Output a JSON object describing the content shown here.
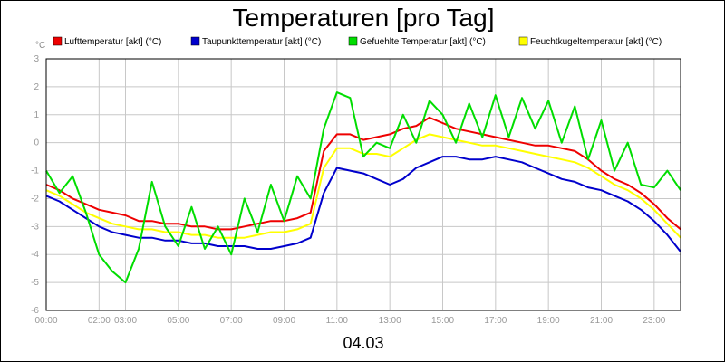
{
  "chart_data": {
    "type": "line",
    "title": "Temperaturen [pro Tag]",
    "unit_label": "°C",
    "date_label": "04.03",
    "ylim": [
      -6,
      3
    ],
    "yticks": [
      "3",
      "2",
      "1",
      "0",
      "-1",
      "-2",
      "-3",
      "-4",
      "-5",
      "-6"
    ],
    "xticks": [
      "00:00",
      "02:00",
      "03:00",
      "05:00",
      "07:00",
      "09:00",
      "11:00",
      "13:00",
      "15:00",
      "17:00",
      "19:00",
      "21:00",
      "23:00"
    ],
    "grid": true,
    "legend_position": "top",
    "series": [
      {
        "name": "Lufttemperatur [akt] (°C)",
        "color": "#ee0000",
        "x": [
          0,
          0.5,
          1,
          1.5,
          2,
          2.5,
          3,
          3.5,
          4,
          4.5,
          5,
          5.5,
          6,
          6.5,
          7,
          7.5,
          8,
          8.5,
          9,
          9.5,
          10,
          10.5,
          11,
          11.5,
          12,
          12.5,
          13,
          13.5,
          14,
          14.5,
          15,
          15.5,
          16,
          16.5,
          17,
          17.5,
          18,
          18.5,
          19,
          19.5,
          20,
          20.5,
          21,
          21.5,
          22,
          22.5,
          23,
          23.5,
          24
        ],
        "y": [
          -1.5,
          -1.7,
          -2.0,
          -2.2,
          -2.4,
          -2.5,
          -2.6,
          -2.8,
          -2.8,
          -2.9,
          -2.9,
          -3.0,
          -3.0,
          -3.1,
          -3.1,
          -3.0,
          -2.9,
          -2.8,
          -2.8,
          -2.7,
          -2.5,
          -0.3,
          0.3,
          0.3,
          0.1,
          0.2,
          0.3,
          0.5,
          0.6,
          0.9,
          0.7,
          0.5,
          0.4,
          0.3,
          0.2,
          0.1,
          0.0,
          -0.1,
          -0.1,
          -0.2,
          -0.3,
          -0.6,
          -1.0,
          -1.3,
          -1.5,
          -1.8,
          -2.2,
          -2.7,
          -3.1
        ]
      },
      {
        "name": "Taupunkttemperatur [akt] (°C)",
        "color": "#0000cc",
        "x": [
          0,
          0.5,
          1,
          1.5,
          2,
          2.5,
          3,
          3.5,
          4,
          4.5,
          5,
          5.5,
          6,
          6.5,
          7,
          7.5,
          8,
          8.5,
          9,
          9.5,
          10,
          10.5,
          11,
          11.5,
          12,
          12.5,
          13,
          13.5,
          14,
          14.5,
          15,
          15.5,
          16,
          16.5,
          17,
          17.5,
          18,
          18.5,
          19,
          19.5,
          20,
          20.5,
          21,
          21.5,
          22,
          22.5,
          23,
          23.5,
          24
        ],
        "y": [
          -1.9,
          -2.1,
          -2.4,
          -2.7,
          -3.0,
          -3.2,
          -3.3,
          -3.4,
          -3.4,
          -3.5,
          -3.5,
          -3.6,
          -3.6,
          -3.7,
          -3.7,
          -3.7,
          -3.8,
          -3.8,
          -3.7,
          -3.6,
          -3.4,
          -1.8,
          -0.9,
          -1.0,
          -1.1,
          -1.3,
          -1.5,
          -1.3,
          -0.9,
          -0.7,
          -0.5,
          -0.5,
          -0.6,
          -0.6,
          -0.5,
          -0.6,
          -0.7,
          -0.9,
          -1.1,
          -1.3,
          -1.4,
          -1.6,
          -1.7,
          -1.9,
          -2.1,
          -2.4,
          -2.8,
          -3.3,
          -3.9
        ]
      },
      {
        "name": "Gefuehlte Temperatur [akt] (°C)",
        "color": "#00dd00",
        "x": [
          0,
          0.5,
          1,
          1.5,
          2,
          2.5,
          3,
          3.5,
          4,
          4.5,
          5,
          5.5,
          6,
          6.5,
          7,
          7.5,
          8,
          8.5,
          9,
          9.5,
          10,
          10.5,
          11,
          11.5,
          12,
          12.5,
          13,
          13.5,
          14,
          14.5,
          15,
          15.5,
          16,
          16.5,
          17,
          17.5,
          18,
          18.5,
          19,
          19.5,
          20,
          20.5,
          21,
          21.5,
          22,
          22.5,
          23,
          23.5,
          24
        ],
        "y": [
          -1.0,
          -1.8,
          -1.2,
          -2.5,
          -4.0,
          -4.6,
          -5.0,
          -3.8,
          -1.4,
          -3.0,
          -3.7,
          -2.3,
          -3.8,
          -3.0,
          -4.0,
          -2.0,
          -3.2,
          -1.5,
          -2.8,
          -1.2,
          -2.0,
          0.5,
          1.8,
          1.6,
          -0.5,
          0.0,
          -0.2,
          1.0,
          0.0,
          1.5,
          1.0,
          0.0,
          1.4,
          0.2,
          1.7,
          0.2,
          1.6,
          0.5,
          1.5,
          0.0,
          1.3,
          -0.6,
          0.8,
          -1.0,
          0.0,
          -1.5,
          -1.6,
          -1.0,
          -1.7
        ]
      },
      {
        "name": "Feuchtkugeltemperatur [akt] (°C)",
        "color": "#ffff00",
        "x": [
          0,
          0.5,
          1,
          1.5,
          2,
          2.5,
          3,
          3.5,
          4,
          4.5,
          5,
          5.5,
          6,
          6.5,
          7,
          7.5,
          8,
          8.5,
          9,
          9.5,
          10,
          10.5,
          11,
          11.5,
          12,
          12.5,
          13,
          13.5,
          14,
          14.5,
          15,
          15.5,
          16,
          16.5,
          17,
          17.5,
          18,
          18.5,
          19,
          19.5,
          20,
          20.5,
          21,
          21.5,
          22,
          22.5,
          23,
          23.5,
          24
        ],
        "y": [
          -1.7,
          -1.9,
          -2.2,
          -2.5,
          -2.7,
          -2.9,
          -3.0,
          -3.1,
          -3.1,
          -3.2,
          -3.2,
          -3.3,
          -3.3,
          -3.4,
          -3.4,
          -3.4,
          -3.3,
          -3.2,
          -3.2,
          -3.1,
          -2.9,
          -0.9,
          -0.2,
          -0.2,
          -0.4,
          -0.4,
          -0.5,
          -0.2,
          0.1,
          0.3,
          0.2,
          0.1,
          0.0,
          -0.1,
          -0.1,
          -0.2,
          -0.3,
          -0.4,
          -0.5,
          -0.6,
          -0.7,
          -0.9,
          -1.2,
          -1.5,
          -1.7,
          -2.0,
          -2.4,
          -2.9,
          -3.4
        ]
      }
    ]
  }
}
